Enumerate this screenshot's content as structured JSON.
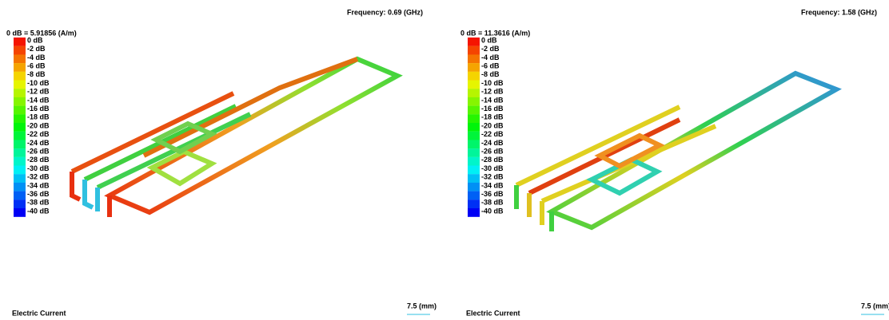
{
  "panels": [
    {
      "frequency": "Frequency: 0.69 (GHz)",
      "reference": "0 dB = 5.91856 (A/m)",
      "legend": [
        "0 dB",
        "-2 dB",
        "-4 dB",
        "-6 dB",
        "-8 dB",
        "-10 dB",
        "-12 dB",
        "-14 dB",
        "-16 dB",
        "-18 dB",
        "-20 dB",
        "-22 dB",
        "-24 dB",
        "-26 dB",
        "-28 dB",
        "-30 dB",
        "-32 dB",
        "-34 dB",
        "-36 dB",
        "-38 dB",
        "-40 dB"
      ],
      "caption": "Electric Current",
      "scale": "7.5 (mm)"
    },
    {
      "frequency": "Frequency: 1.58 (GHz)",
      "reference": "0 dB = 11.3616 (A/m)",
      "legend": [
        "0 dB",
        "-2 dB",
        "-4 dB",
        "-6 dB",
        "-8 dB",
        "-10 dB",
        "-12 dB",
        "-14 dB",
        "-16 dB",
        "-18 dB",
        "-20 dB",
        "-22 dB",
        "-24 dB",
        "-26 dB",
        "-28 dB",
        "-30 dB",
        "-32 dB",
        "-34 dB",
        "-36 dB",
        "-38 dB",
        "-40 dB"
      ],
      "caption": "Electric Current",
      "scale": "7.5 (mm)"
    }
  ]
}
